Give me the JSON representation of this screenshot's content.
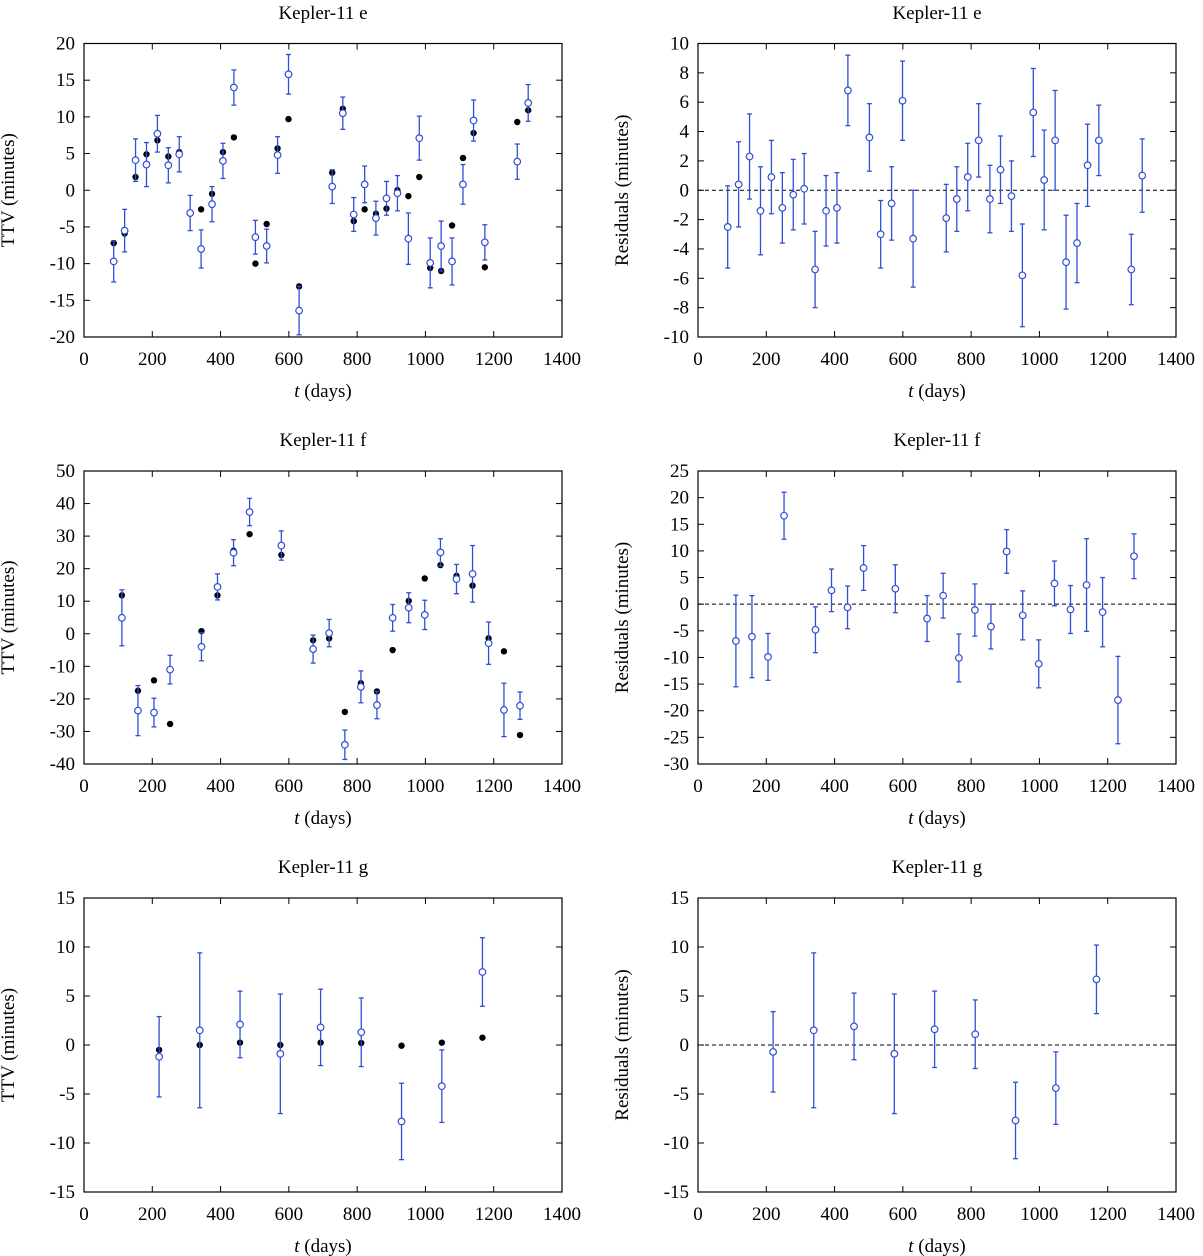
{
  "colors": {
    "observed": "#2f4fd8",
    "model": "#000000",
    "zero_line": "#000000"
  },
  "chart_data": [
    {
      "type": "scatter",
      "panel": "left",
      "row": 0,
      "title": "Kepler-11 e",
      "xlabel_var": "t",
      "xlabel_unit": " (days)",
      "ylabel": "TTV (minutes)",
      "xlim": [
        0,
        1400
      ],
      "ylim": [
        -20,
        20
      ],
      "xticks": [
        "0",
        "200",
        "400",
        "600",
        "800",
        "1000",
        "1200",
        "1400"
      ],
      "yticks": [
        "-20",
        "-15",
        "-10",
        "-5",
        "0",
        "5",
        "10",
        "15",
        "20"
      ],
      "zero_line": false,
      "x": [
        87,
        119,
        151,
        183,
        215,
        247,
        279,
        311,
        343,
        375,
        407,
        439,
        502,
        535,
        567,
        599,
        630,
        727,
        758,
        790,
        822,
        855,
        886,
        918,
        950,
        982,
        1014,
        1046,
        1078,
        1110,
        1141,
        1174,
        1269,
        1301
      ],
      "observed": [
        -9.7,
        -5.5,
        4.1,
        3.5,
        7.7,
        3.4,
        4.9,
        -3.1,
        -8.0,
        -1.9,
        4.0,
        14.0,
        -6.4,
        -7.6,
        4.8,
        15.8,
        -16.4,
        0.5,
        10.5,
        -3.3,
        0.8,
        -3.8,
        -1.1,
        -0.4,
        -6.6,
        7.1,
        -9.9,
        -7.6,
        -9.7,
        0.8,
        9.5,
        -7.1,
        3.9,
        11.9
      ],
      "error": [
        2.8,
        2.9,
        2.9,
        3.0,
        2.5,
        2.4,
        2.4,
        2.4,
        2.6,
        2.4,
        2.4,
        2.4,
        2.3,
        2.3,
        2.5,
        2.7,
        3.3,
        2.3,
        2.2,
        2.3,
        2.5,
        2.3,
        2.3,
        2.4,
        3.5,
        3.0,
        3.4,
        3.4,
        3.2,
        2.7,
        2.8,
        2.4,
        2.4,
        2.5
      ],
      "model": [
        -7.2,
        -5.9,
        1.8,
        4.9,
        6.8,
        4.6,
        5.2,
        -3.2,
        -2.6,
        -0.5,
        5.2,
        7.2,
        -10.0,
        -4.6,
        5.7,
        9.7,
        -13.1,
        2.4,
        11.1,
        -4.2,
        -2.6,
        -3.2,
        -2.5,
        0.0,
        -0.8,
        1.8,
        -10.6,
        -11.0,
        -4.8,
        4.4,
        7.8,
        -10.5,
        9.3,
        10.9
      ]
    },
    {
      "type": "scatter",
      "panel": "right",
      "row": 0,
      "title": "Kepler-11 e",
      "xlabel_var": "t",
      "xlabel_unit": " (days)",
      "ylabel": "Residuals (minutes)",
      "xlim": [
        0,
        1400
      ],
      "ylim": [
        -10,
        10
      ],
      "xticks": [
        "0",
        "200",
        "400",
        "600",
        "800",
        "1000",
        "1200",
        "1400"
      ],
      "yticks": [
        "-10",
        "-8",
        "-6",
        "-4",
        "-2",
        "0",
        "2",
        "4",
        "6",
        "8",
        "10"
      ],
      "zero_line": true,
      "x": [
        87,
        119,
        151,
        183,
        215,
        247,
        279,
        311,
        343,
        375,
        407,
        439,
        502,
        535,
        567,
        599,
        630,
        727,
        758,
        790,
        822,
        855,
        886,
        918,
        950,
        982,
        1014,
        1046,
        1078,
        1110,
        1141,
        1174,
        1269,
        1301
      ],
      "observed": [
        -2.5,
        0.4,
        2.3,
        -1.4,
        0.9,
        -1.2,
        -0.3,
        0.1,
        -5.4,
        -1.4,
        -1.2,
        6.8,
        3.6,
        -3.0,
        -0.9,
        6.1,
        -3.3,
        -1.9,
        -0.6,
        0.9,
        3.4,
        -0.6,
        1.4,
        -0.4,
        -5.8,
        5.3,
        0.7,
        3.4,
        -4.9,
        -3.6,
        1.7,
        3.4,
        -5.4,
        1.0
      ],
      "error": [
        2.8,
        2.9,
        2.9,
        3.0,
        2.5,
        2.4,
        2.4,
        2.4,
        2.6,
        2.4,
        2.4,
        2.4,
        2.3,
        2.3,
        2.5,
        2.7,
        3.3,
        2.3,
        2.2,
        2.3,
        2.5,
        2.3,
        2.3,
        2.4,
        3.5,
        3.0,
        3.4,
        3.4,
        3.2,
        2.7,
        2.8,
        2.4,
        2.4,
        2.5
      ]
    },
    {
      "type": "scatter",
      "panel": "left",
      "row": 1,
      "title": "Kepler-11 f",
      "xlabel_var": "t",
      "xlabel_unit": " (days)",
      "ylabel": "TTV (minutes)",
      "xlim": [
        0,
        1400
      ],
      "ylim": [
        -40,
        50
      ],
      "xticks": [
        "0",
        "200",
        "400",
        "600",
        "800",
        "1000",
        "1200",
        "1400"
      ],
      "yticks": [
        "-40",
        "-30",
        "-20",
        "-10",
        "0",
        "10",
        "20",
        "30",
        "40",
        "50"
      ],
      "zero_line": false,
      "x": [
        111,
        158,
        205,
        252,
        344,
        391,
        438,
        485,
        578,
        671,
        718,
        764,
        811,
        858,
        904,
        951,
        998,
        1044,
        1091,
        1138,
        1185,
        1230,
        1277
      ],
      "observed": [
        4.9,
        -23.6,
        -24.2,
        -11.0,
        -4.0,
        14.4,
        24.9,
        37.4,
        27.1,
        -4.7,
        0.2,
        -34.1,
        -16.3,
        -21.9,
        4.9,
        8.0,
        5.8,
        25.0,
        16.8,
        18.4,
        -2.9,
        -23.4,
        -22.1
      ],
      "error": [
        8.6,
        7.7,
        4.4,
        4.4,
        4.3,
        4.0,
        4.0,
        4.2,
        4.5,
        4.3,
        4.2,
        4.5,
        4.9,
        4.2,
        4.1,
        4.6,
        4.5,
        4.2,
        4.5,
        8.7,
        6.5,
        8.2,
        4.2
      ],
      "model": [
        11.8,
        -17.5,
        -14.3,
        -27.7,
        0.8,
        11.8,
        25.5,
        30.6,
        24.2,
        -2.0,
        -1.4,
        -24.0,
        -15.2,
        -17.7,
        -5.0,
        10.1,
        17.0,
        21.1,
        17.8,
        14.8,
        -1.4,
        -5.4,
        -31.1
      ]
    },
    {
      "type": "scatter",
      "panel": "right",
      "row": 1,
      "title": "Kepler-11 f",
      "xlabel_var": "t",
      "xlabel_unit": " (days)",
      "ylabel": "Residuals (minutes)",
      "xlim": [
        0,
        1400
      ],
      "ylim": [
        -30,
        25
      ],
      "xticks": [
        "0",
        "200",
        "400",
        "600",
        "800",
        "1000",
        "1200",
        "1400"
      ],
      "yticks": [
        "-30",
        "-25",
        "-20",
        "-15",
        "-10",
        "-5",
        "0",
        "5",
        "10",
        "15",
        "20",
        "25"
      ],
      "zero_line": true,
      "x": [
        111,
        158,
        205,
        252,
        344,
        391,
        438,
        485,
        578,
        671,
        718,
        764,
        811,
        858,
        904,
        951,
        998,
        1044,
        1091,
        1138,
        1185,
        1230,
        1277
      ],
      "observed": [
        -6.9,
        -6.1,
        -9.9,
        16.6,
        -4.8,
        2.6,
        -0.6,
        6.8,
        2.9,
        -2.7,
        1.6,
        -10.1,
        -1.1,
        -4.2,
        9.9,
        -2.1,
        -11.2,
        3.9,
        -1.0,
        3.6,
        -1.5,
        -18.0,
        9.0
      ],
      "error": [
        8.6,
        7.7,
        4.4,
        4.4,
        4.3,
        4.0,
        4.0,
        4.2,
        4.5,
        4.3,
        4.2,
        4.5,
        4.9,
        4.2,
        4.1,
        4.6,
        4.5,
        4.2,
        4.5,
        8.7,
        6.5,
        8.2,
        4.2
      ]
    },
    {
      "type": "scatter",
      "panel": "left",
      "row": 2,
      "title": "Kepler-11 g",
      "xlabel_var": "t",
      "xlabel_unit": " (days)",
      "ylabel": "TTV (minutes)",
      "xlim": [
        0,
        1400
      ],
      "ylim": [
        -15,
        15
      ],
      "xticks": [
        "0",
        "200",
        "400",
        "600",
        "800",
        "1000",
        "1200",
        "1400"
      ],
      "yticks": [
        "-15",
        "-10",
        "-5",
        "0",
        "5",
        "10",
        "15"
      ],
      "zero_line": false,
      "x": [
        220,
        339,
        457,
        575,
        693,
        812,
        930,
        1048,
        1167
      ],
      "observed": [
        -1.2,
        1.5,
        2.1,
        -0.9,
        1.8,
        1.3,
        -7.8,
        -4.2,
        7.45
      ],
      "error": [
        4.1,
        7.9,
        3.4,
        6.1,
        3.9,
        3.5,
        3.9,
        3.7,
        3.5
      ],
      "model": [
        -0.5,
        0.0,
        0.24,
        0.0,
        0.24,
        0.2,
        -0.07,
        0.24,
        0.75
      ]
    },
    {
      "type": "scatter",
      "panel": "right",
      "row": 2,
      "title": "Kepler-11 g",
      "xlabel_var": "t",
      "xlabel_unit": " (days)",
      "ylabel": "Residuals (minutes)",
      "xlim": [
        0,
        1400
      ],
      "ylim": [
        -15,
        15
      ],
      "xticks": [
        "0",
        "200",
        "400",
        "600",
        "800",
        "1000",
        "1200",
        "1400"
      ],
      "yticks": [
        "-15",
        "-10",
        "-5",
        "0",
        "5",
        "10",
        "15"
      ],
      "zero_line": true,
      "x": [
        220,
        339,
        457,
        575,
        693,
        812,
        930,
        1048,
        1167
      ],
      "observed": [
        -0.7,
        1.5,
        1.9,
        -0.9,
        1.6,
        1.1,
        -7.7,
        -4.4,
        6.7
      ],
      "error": [
        4.1,
        7.9,
        3.4,
        6.1,
        3.9,
        3.5,
        3.9,
        3.7,
        3.5
      ]
    }
  ]
}
